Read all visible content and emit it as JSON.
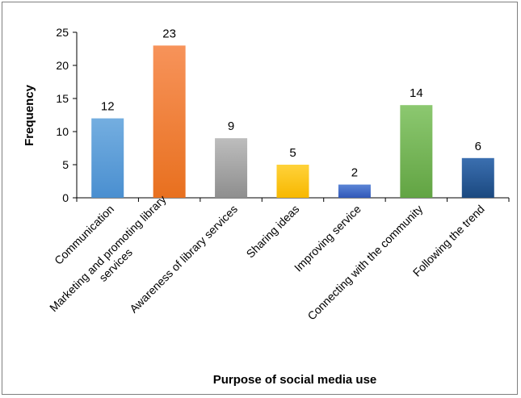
{
  "chart_data": {
    "type": "bar",
    "title": "",
    "xlabel": "Purpose of social media use",
    "ylabel": "Frequency",
    "ylim": [
      0,
      25
    ],
    "yticks": [
      0,
      5,
      10,
      15,
      20,
      25
    ],
    "grid": false,
    "legend": "none",
    "categories": [
      [
        "Communication"
      ],
      [
        "Marketing and promoting library",
        "services"
      ],
      [
        "Awareness of library services"
      ],
      [
        "Sharing ideas"
      ],
      [
        "Improving service"
      ],
      [
        "Connecting with the community"
      ],
      [
        "Following the trend"
      ]
    ],
    "values": [
      12,
      23,
      9,
      5,
      2,
      14,
      6
    ],
    "colors": [
      [
        "#74aee0",
        "#4a8fd0"
      ],
      [
        "#f7935a",
        "#e8701f"
      ],
      [
        "#bdbdbd",
        "#8e8e8e"
      ],
      [
        "#ffd23a",
        "#f7b800"
      ],
      [
        "#5b85d6",
        "#3158b8"
      ],
      [
        "#8cc870",
        "#62a443"
      ],
      [
        "#3b6fb0",
        "#1b4980"
      ]
    ]
  }
}
